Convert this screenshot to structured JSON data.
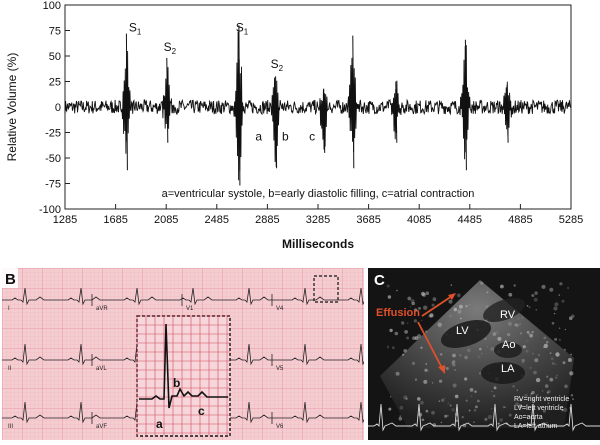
{
  "chart_data": {
    "type": "line",
    "panel_label": "",
    "xlabel": "Milliseconds",
    "ylabel": "Relative Volume (%)",
    "xlim": [
      1285,
      5285
    ],
    "ylim": [
      -100,
      100
    ],
    "x_ticks": [
      1285,
      1685,
      2085,
      2485,
      2885,
      3285,
      3685,
      4085,
      4485,
      4885,
      5285
    ],
    "y_ticks": [
      -100,
      -75,
      -50,
      -25,
      0,
      25,
      50,
      75,
      100
    ],
    "grid": false,
    "legend_text": "a=ventricular systole, b=early diastolic filling, c=atrial contraction",
    "annotations": [
      {
        "label": "S",
        "sub": "1",
        "x": 1790,
        "y": 74
      },
      {
        "label": "S",
        "sub": "2",
        "x": 2065,
        "y": 55
      },
      {
        "label": "S",
        "sub": "1",
        "x": 2635,
        "y": 74
      },
      {
        "label": "S",
        "sub": "2",
        "x": 2910,
        "y": 38
      },
      {
        "label": "a",
        "x": 2790,
        "y": -33
      },
      {
        "label": "b",
        "x": 3000,
        "y": -33
      },
      {
        "label": "c",
        "x": 3215,
        "y": -33
      }
    ],
    "peaks": [
      {
        "x": 1770,
        "max": 72,
        "min": -62
      },
      {
        "x": 2090,
        "max": 48,
        "min": -35
      },
      {
        "x": 2660,
        "max": 80,
        "min": -77
      },
      {
        "x": 2950,
        "max": 30,
        "min": -60
      },
      {
        "x": 3330,
        "max": 18,
        "min": -45
      },
      {
        "x": 3560,
        "max": 70,
        "min": -60
      },
      {
        "x": 3900,
        "max": 25,
        "min": -35
      },
      {
        "x": 4450,
        "max": 66,
        "min": -62
      },
      {
        "x": 4780,
        "max": 22,
        "min": -35
      }
    ]
  },
  "panel_b": {
    "label": "B",
    "leads": [
      "I",
      "aVR",
      "V1",
      "V4",
      "II",
      "aVL",
      "V2",
      "V5",
      "III",
      "aVF",
      "V3",
      "V6"
    ],
    "inset_labels": [
      "a",
      "b",
      "c"
    ]
  },
  "panel_c": {
    "label": "C",
    "effusion_label": "Effusion",
    "labels": [
      "RV",
      "LV",
      "Ao",
      "LA"
    ],
    "legend": [
      "RV=right ventricle",
      "LV=left ventricle",
      "Ao=aorta",
      "LA=left atrium"
    ],
    "colors": {
      "effusion": "#e0502a",
      "ecg_bg": "#f1c6cb",
      "ecg_grid": "#e48a96"
    }
  }
}
